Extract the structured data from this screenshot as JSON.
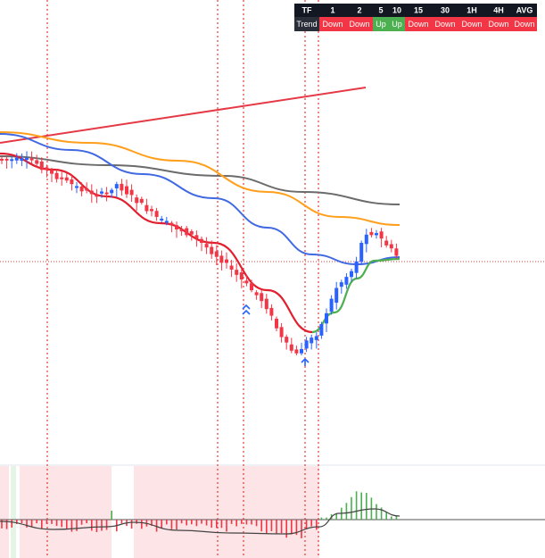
{
  "table": {
    "header": [
      "TF",
      "1",
      "2",
      "5",
      "10",
      "15",
      "30",
      "1H",
      "4H",
      "AVG"
    ],
    "rows": [
      [
        "Trend",
        "Down",
        "Down",
        "Up",
        "Up",
        "Down",
        "Down",
        "Down",
        "Down",
        "Down"
      ]
    ]
  }
}
